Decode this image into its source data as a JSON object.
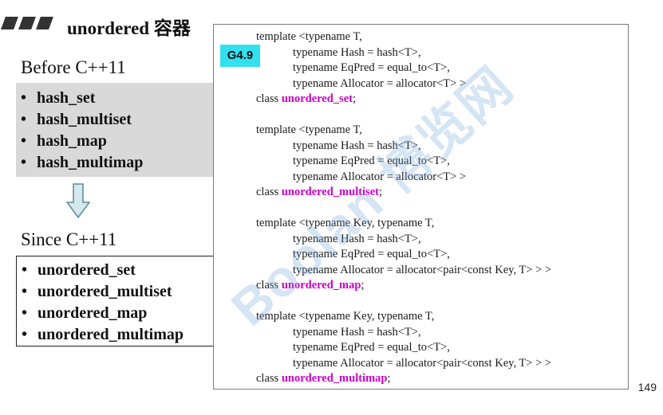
{
  "slide": {
    "title": "unordered 容器",
    "page_number": "149"
  },
  "before": {
    "label": "Before C++11",
    "items": [
      "hash_set",
      "hash_multiset",
      "hash_map",
      "hash_multimap"
    ]
  },
  "since": {
    "label": "Since C++11",
    "items": [
      "unordered_set",
      "unordered_multiset",
      "unordered_map",
      "unordered_multimap"
    ]
  },
  "code": {
    "badge": "G4.9",
    "blocks": [
      {
        "lines": [
          "template <typename T,",
          "typename Hash = hash<T>,",
          "typename EqPred = equal_to<T>,",
          "typename Allocator = allocator<T> >"
        ],
        "class_kw": "class",
        "class_name": "unordered_set",
        "semicolon": ";"
      },
      {
        "lines": [
          "template <typename T,",
          "typename Hash = hash<T>,",
          "typename EqPred = equal_to<T>,",
          "typename Allocator = allocator<T> >"
        ],
        "class_kw": "class",
        "class_name": "unordered_multiset",
        "semicolon": ";"
      },
      {
        "lines": [
          "template <typename Key, typename T,",
          "typename Hash = hash<T>,",
          "typename EqPred = equal_to<T>,",
          "typename Allocator = allocator<pair<const Key, T> > >"
        ],
        "class_kw": "class",
        "class_name": "unordered_map",
        "semicolon": ";"
      },
      {
        "lines": [
          "template <typename Key, typename T,",
          "typename Hash = hash<T>,",
          "typename EqPred = equal_to<T>,",
          "typename Allocator = allocator<pair<const Key, T> > >"
        ],
        "class_kw": "class",
        "class_name": "unordered_multimap",
        "semicolon": ";"
      }
    ]
  },
  "watermark": {
    "text": "Boolan 博览网"
  },
  "colors": {
    "badge_bg": "#33e0f0",
    "class_name": "#cc00cc",
    "gray_box": "#d9d9d9",
    "arrow_fill": "#d4e8ee",
    "arrow_stroke": "#5b8a99"
  }
}
